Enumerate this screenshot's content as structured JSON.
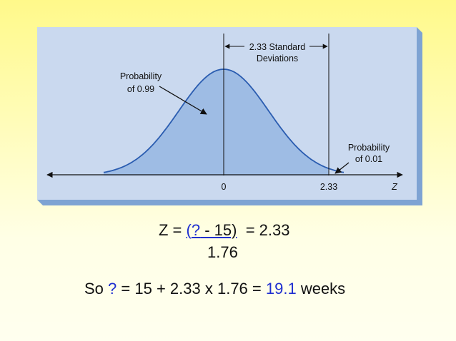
{
  "figure": {
    "std_label": [
      "2.33 Standard",
      "Deviations"
    ],
    "left_probability": [
      "Probability",
      "of 0.99"
    ],
    "right_probability": [
      "Probability",
      "of 0.01"
    ],
    "axis_labels": [
      "0",
      "2.33",
      "Z"
    ]
  },
  "equation": {
    "lhs": "Z =",
    "numerator": [
      "(",
      "?",
      " - 15)"
    ],
    "rhs": "= 2.33",
    "denominator": "1.76"
  },
  "result": {
    "parts": [
      "So",
      "?",
      "= 15 + 2.33 x 1.76 =",
      "19.1",
      "weeks"
    ]
  }
}
